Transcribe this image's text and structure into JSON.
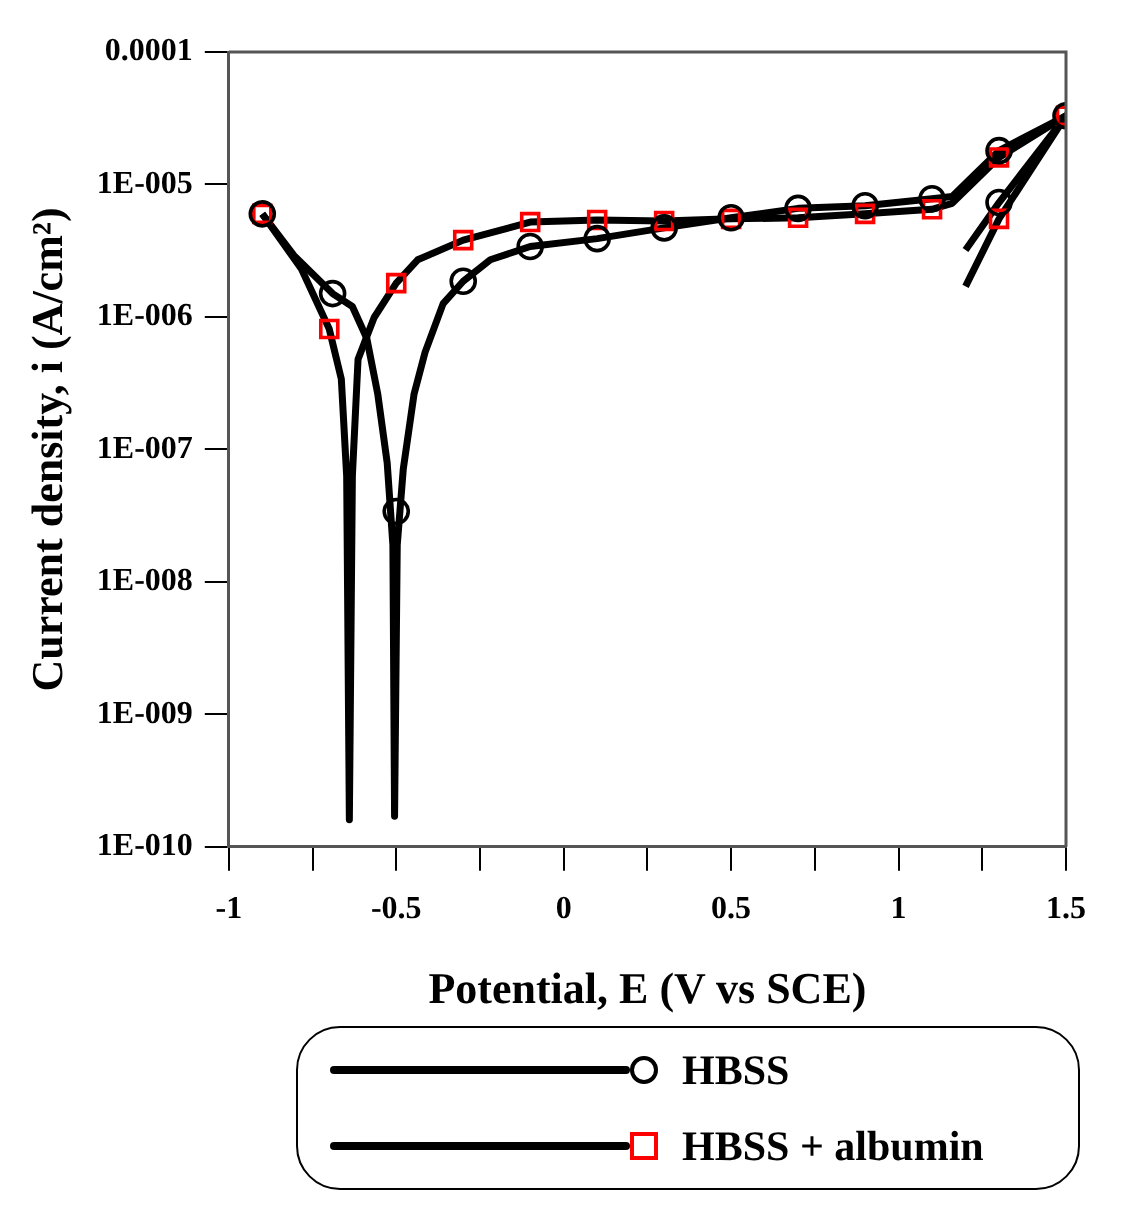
{
  "chart_data": {
    "type": "line",
    "xlabel": "Potential, E (V vs SCE)",
    "ylabel": "Current density, i (A/cm²)",
    "log": "y",
    "grid": false,
    "legend": "bottom",
    "xlim": [
      -1,
      1.5
    ],
    "xticks": [
      -1,
      {
        "value": -0.75,
        "label": null
      },
      -0.5,
      {
        "value": -0.25,
        "label": null
      },
      0,
      {
        "value": 0.25,
        "label": null
      },
      0.5,
      {
        "value": 0.75,
        "label": null
      },
      1,
      {
        "value": 1.25,
        "label": null
      },
      1.5
    ],
    "ylim": [
      1e-10,
      0.0001
    ],
    "yticks": [
      {
        "value": 1e-10,
        "label": "1E-010"
      },
      {
        "value": 1e-09,
        "label": "1E-009"
      },
      {
        "value": 1e-08,
        "label": "1E-008"
      },
      {
        "value": 1e-07,
        "label": "1E-007"
      },
      {
        "value": 1e-06,
        "label": "1E-006"
      },
      {
        "value": 1e-05,
        "label": "1E-005"
      },
      {
        "value": 0.0001,
        "label": "0.0001"
      }
    ],
    "series": [
      {
        "type": "line",
        "color": "#000000",
        "marker": "none",
        "x": [
          -0.9,
          -0.805,
          -0.69,
          -0.631,
          -0.588,
          -0.555,
          -0.527,
          -0.51,
          -0.505,
          -0.497,
          -0.479,
          -0.447,
          -0.414,
          -0.36,
          -0.3,
          -0.219,
          -0.1,
          0.1,
          0.3,
          0.5,
          0.7,
          0.9,
          1.1,
          1.16,
          1.3,
          1.5,
          1.3,
          1.2
        ],
        "values": [
          6e-06,
          2.9e-06,
          1.5e-06,
          1.2e-06,
          6.9e-07,
          2.6e-07,
          7.9e-08,
          1.9e-08,
          1.7e-10,
          1.9e-08,
          7.1e-08,
          2.6e-07,
          5.4e-07,
          1.26e-06,
          1.86e-06,
          2.7e-06,
          3.4e-06,
          3.9e-06,
          4.7e-06,
          5.6e-06,
          6.6e-06,
          6.9e-06,
          7.8e-06,
          8.1e-06,
          1.8e-05,
          3.3e-05,
          7.3e-06,
          3.2e-06
        ]
      },
      {
        "type": "scatter",
        "name": "HBSS",
        "color": "#000000",
        "marker": "circle",
        "x": [
          -0.9,
          -0.69,
          -0.5,
          -0.3,
          -0.1,
          0.1,
          0.3,
          0.5,
          0.7,
          0.9,
          1.1,
          1.3,
          1.3,
          1.5
        ],
        "values": [
          6e-06,
          1.5e-06,
          3.4e-08,
          1.86e-06,
          3.4e-06,
          3.9e-06,
          4.7e-06,
          5.6e-06,
          6.6e-06,
          6.9e-06,
          7.8e-06,
          1.8e-05,
          7.3e-06,
          3.3e-05
        ]
      },
      {
        "type": "line",
        "color": "#000000",
        "marker": "none",
        "x": [
          -0.9,
          -0.783,
          -0.7,
          -0.664,
          -0.648,
          -0.64,
          -0.631,
          -0.614,
          -0.566,
          -0.5,
          -0.436,
          -0.3,
          -0.1,
          0.1,
          0.3,
          0.5,
          0.7,
          0.9,
          1.1,
          1.16,
          1.3,
          1.5,
          1.3,
          1.2
        ],
        "values": [
          6e-06,
          2.3e-06,
          8.1e-07,
          3.4e-07,
          6.3e-08,
          1.6e-10,
          6.3e-08,
          4.8e-07,
          9.9e-07,
          1.8e-06,
          2.7e-06,
          3.8e-06,
          5.2e-06,
          5.4e-06,
          5.3e-06,
          5.5e-06,
          5.6e-06,
          6e-06,
          6.5e-06,
          7.2e-06,
          1.6e-05,
          3.3e-05,
          5.5e-06,
          1.7e-06
        ]
      },
      {
        "type": "scatter",
        "name": "HBSS + albumin",
        "color": "#ff0000",
        "marker": "square",
        "x": [
          -0.9,
          -0.7,
          -0.5,
          -0.3,
          -0.1,
          0.1,
          0.3,
          0.5,
          0.7,
          0.9,
          1.1,
          1.3,
          1.3,
          1.5
        ],
        "values": [
          6e-06,
          8.1e-07,
          1.8e-06,
          3.8e-06,
          5.2e-06,
          5.4e-06,
          5.3e-06,
          5.5e-06,
          5.6e-06,
          6e-06,
          6.5e-06,
          1.6e-05,
          5.5e-06,
          3.3e-05
        ]
      }
    ]
  }
}
